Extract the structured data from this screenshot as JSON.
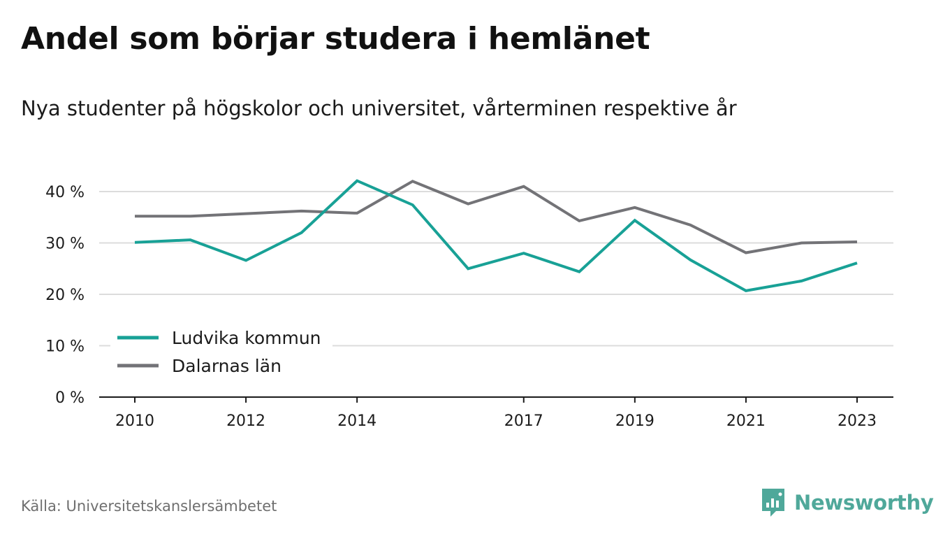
{
  "title": "Andel som börjar studera i hemlänet",
  "subtitle": "Nya studenter på högskolor och universitet, vårterminen respektive år",
  "source": "Källa: Universitetskanslersämbetet",
  "brand": "Newsworthy",
  "colors": {
    "ludvika": "#18a196",
    "dalarna": "#737377",
    "grid": "#dcdcdc",
    "axis": "#1b1b1b",
    "brand": "#4fa89a"
  },
  "chart_data": {
    "type": "line",
    "x": [
      2010,
      2011,
      2012,
      2013,
      2014,
      2015,
      2016,
      2017,
      2018,
      2019,
      2020,
      2021,
      2022,
      2023
    ],
    "x_tick_labels": [
      "2010",
      "2012",
      "2014",
      "2017",
      "2019",
      "2021",
      "2023"
    ],
    "y_tick_labels": [
      "0 %",
      "10 %",
      "20 %",
      "30 %",
      "40 %"
    ],
    "y_ticks": [
      0,
      10,
      20,
      30,
      40
    ],
    "ylim": [
      0,
      45
    ],
    "xlim": [
      2010,
      2023
    ],
    "grid": true,
    "legend_position": "bottom-left",
    "series": [
      {
        "name": "Ludvika kommun",
        "color": "#18a196",
        "values": [
          30.1,
          30.6,
          26.6,
          32.0,
          42.1,
          37.4,
          25.0,
          28.0,
          24.4,
          34.4,
          26.7,
          20.7,
          22.6,
          26.1
        ]
      },
      {
        "name": "Dalarnas län",
        "color": "#737377",
        "values": [
          35.2,
          35.2,
          35.7,
          36.2,
          35.8,
          42.0,
          37.6,
          41.0,
          34.3,
          36.9,
          33.5,
          28.1,
          30.0,
          30.2
        ]
      }
    ]
  }
}
